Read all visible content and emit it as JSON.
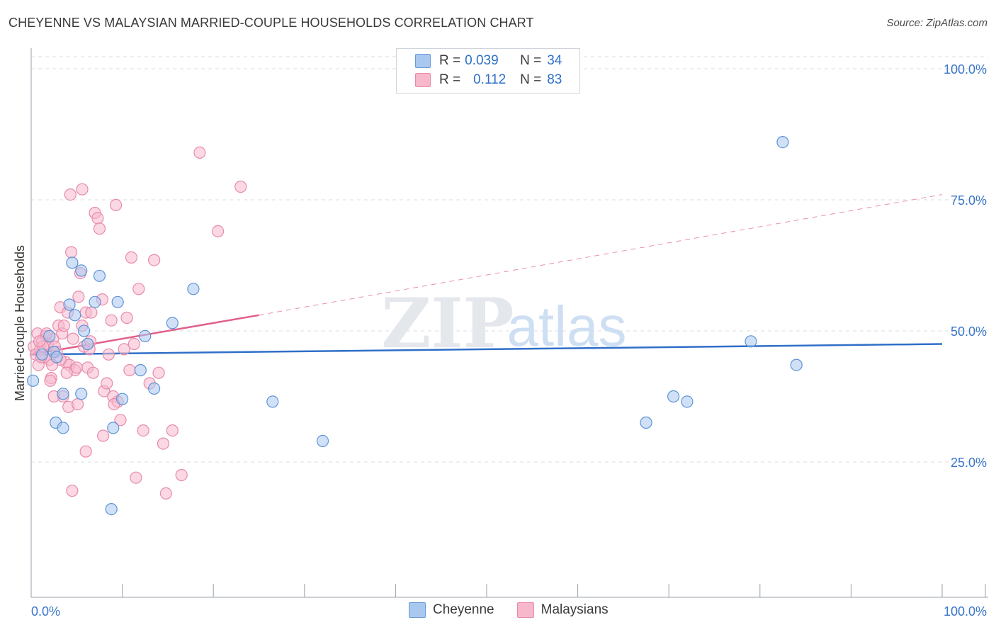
{
  "title": "CHEYENNE VS MALAYSIAN MARRIED-COUPLE HOUSEHOLDS CORRELATION CHART",
  "source": "Source: ZipAtlas.com",
  "watermark": {
    "zip": "ZIP",
    "atlas": "atlas"
  },
  "legend": {
    "rows": [
      {
        "r_label": "R =",
        "r_value": "0.039",
        "n_label": "N =",
        "n_value": "34",
        "color": "#a9c8f0",
        "border": "#6a9ad8"
      },
      {
        "r_label": "R =",
        "r_value": "0.112",
        "n_label": "N =",
        "n_value": "83",
        "color": "#f7b8cc",
        "border": "#e88aa8"
      }
    ]
  },
  "bottom_legend": [
    {
      "label": "Cheyenne",
      "color": "#a9c8f0",
      "border": "#6a9ad8"
    },
    {
      "label": "Malaysians",
      "color": "#f7b8cc",
      "border": "#e88aa8"
    }
  ],
  "colors": {
    "cheyenne_fill": "#a9c8f0",
    "cheyenne_stroke": "#5f93d6",
    "cheyenne_line": "#2f6fc8",
    "malaysian_fill": "#f7b8cc",
    "malaysian_stroke": "#e78bab",
    "malaysian_line": "#e0608c",
    "axis_label": "#3a76c9",
    "grid": "#dadde3"
  },
  "chart_data": {
    "type": "scatter",
    "title": "CHEYENNE VS MALAYSIAN MARRIED-COUPLE HOUSEHOLDS CORRELATION CHART",
    "xlabel": "",
    "ylabel": "Married-couple Households",
    "xlim": [
      0,
      100
    ],
    "ylim": [
      0,
      105
    ],
    "x_tick_labels": [
      "0.0%",
      "100.0%"
    ],
    "y_ticks": [
      25,
      50,
      75,
      100
    ],
    "y_tick_labels": [
      "25.0%",
      "50.0%",
      "75.0%",
      "100.0%"
    ],
    "series": [
      {
        "name": "Cheyenne",
        "R": 0.039,
        "N": 34,
        "trend": {
          "x": [
            0,
            100
          ],
          "y": [
            45.5,
            47.5
          ],
          "dashed_from": null
        },
        "points": [
          [
            0.2,
            40.5
          ],
          [
            1.2,
            45.5
          ],
          [
            2,
            49
          ],
          [
            2.5,
            46
          ],
          [
            2.7,
            32.5
          ],
          [
            3.5,
            31.5
          ],
          [
            4.2,
            55
          ],
          [
            4.5,
            63
          ],
          [
            4.8,
            53
          ],
          [
            5.5,
            61.5
          ],
          [
            5.8,
            50
          ],
          [
            6.2,
            47.5
          ],
          [
            7,
            55.5
          ],
          [
            7.5,
            60.5
          ],
          [
            9,
            31.5
          ],
          [
            9.5,
            55.5
          ],
          [
            10,
            37
          ],
          [
            12,
            42.5
          ],
          [
            13.5,
            39
          ],
          [
            12.5,
            49
          ],
          [
            15.5,
            51.5
          ],
          [
            17.8,
            58
          ],
          [
            8.8,
            16
          ],
          [
            5.5,
            38
          ],
          [
            26.5,
            36.5
          ],
          [
            32,
            29
          ],
          [
            67.5,
            32.5
          ],
          [
            70.5,
            37.5
          ],
          [
            72,
            36.5
          ],
          [
            79,
            48
          ],
          [
            82.5,
            86
          ],
          [
            84,
            43.5
          ],
          [
            2.8,
            45
          ],
          [
            3.5,
            38
          ]
        ]
      },
      {
        "name": "Malaysians",
        "R": 0.112,
        "N": 83,
        "trend": {
          "x": [
            0,
            25,
            100
          ],
          "y": [
            45.5,
            53,
            76
          ],
          "dashed_from": 25
        },
        "points": [
          [
            0.3,
            47
          ],
          [
            0.5,
            45.5
          ],
          [
            0.7,
            49.5
          ],
          [
            0.8,
            43.5
          ],
          [
            1,
            46.5
          ],
          [
            1.2,
            48
          ],
          [
            1.4,
            45
          ],
          [
            1.6,
            49
          ],
          [
            1.8,
            47.5
          ],
          [
            2,
            44.5
          ],
          [
            2.2,
            41
          ],
          [
            2.4,
            48.5
          ],
          [
            2.6,
            47
          ],
          [
            2.8,
            46
          ],
          [
            3,
            51
          ],
          [
            3.2,
            54.5
          ],
          [
            3.4,
            49.5
          ],
          [
            3.6,
            51
          ],
          [
            3.8,
            44
          ],
          [
            4,
            53.5
          ],
          [
            4.2,
            43.5
          ],
          [
            4.4,
            65
          ],
          [
            4.6,
            48.5
          ],
          [
            4.8,
            42.5
          ],
          [
            5,
            43
          ],
          [
            5.2,
            56.5
          ],
          [
            5.4,
            61
          ],
          [
            5.6,
            51
          ],
          [
            5.8,
            47
          ],
          [
            6,
            53.5
          ],
          [
            6.2,
            43
          ],
          [
            6.4,
            46.5
          ],
          [
            6.6,
            53.5
          ],
          [
            6.8,
            42
          ],
          [
            7,
            72.5
          ],
          [
            7.3,
            71.5
          ],
          [
            7.5,
            69.5
          ],
          [
            7.8,
            56
          ],
          [
            8,
            38.5
          ],
          [
            8.3,
            40
          ],
          [
            8.5,
            45.5
          ],
          [
            8.8,
            52
          ],
          [
            9,
            37.5
          ],
          [
            9.3,
            74
          ],
          [
            9.5,
            36.5
          ],
          [
            9.8,
            33
          ],
          [
            10.2,
            46.5
          ],
          [
            10.5,
            52.5
          ],
          [
            10.8,
            42.5
          ],
          [
            11,
            64
          ],
          [
            11.3,
            47.5
          ],
          [
            11.5,
            22
          ],
          [
            11.8,
            58
          ],
          [
            12.3,
            31
          ],
          [
            13,
            40
          ],
          [
            13.5,
            63.5
          ],
          [
            14,
            42
          ],
          [
            14.5,
            28.5
          ],
          [
            14.8,
            19
          ],
          [
            15.5,
            31
          ],
          [
            16.5,
            22.5
          ],
          [
            18.5,
            84
          ],
          [
            20.5,
            69
          ],
          [
            23,
            77.5
          ],
          [
            4.3,
            76
          ],
          [
            5.6,
            77
          ],
          [
            6,
            27
          ],
          [
            4.5,
            19.5
          ],
          [
            3.5,
            37.5
          ],
          [
            2.5,
            37.5
          ],
          [
            3.2,
            44.5
          ],
          [
            2.1,
            40.5
          ],
          [
            1.1,
            45
          ],
          [
            1.3,
            47
          ],
          [
            0.9,
            48
          ],
          [
            1.7,
            49.5
          ],
          [
            4.1,
            35.5
          ],
          [
            5.1,
            36
          ],
          [
            7.9,
            30
          ],
          [
            9.1,
            36
          ],
          [
            2.3,
            43.5
          ],
          [
            3.9,
            42
          ],
          [
            6.5,
            48
          ]
        ]
      }
    ]
  }
}
